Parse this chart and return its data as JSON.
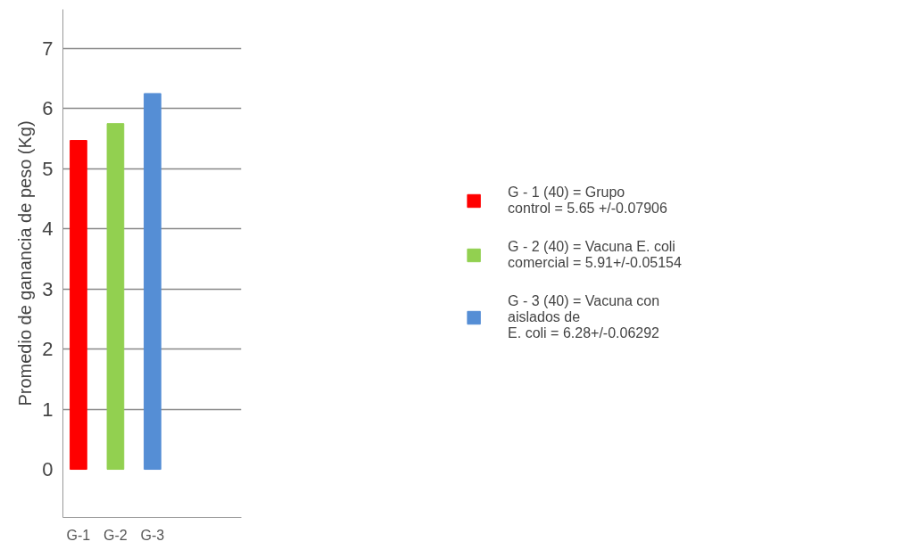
{
  "chart_data": {
    "type": "bar",
    "ylabel": "Promedio de ganancia de peso (Kg)",
    "categories": [
      "G-1",
      "G-2",
      "G-3"
    ],
    "series": [
      {
        "name": "G - 1 (40) = Grupo\ncontrol = 5.65 +/-0.07906",
        "color": "#ff0000",
        "values": [
          5.47,
          null,
          null
        ]
      },
      {
        "name": "G - 2 (40) = Vacuna E. coli\ncomercial = 5.91+/-0.05154",
        "color": "#92d050",
        "values": [
          null,
          5.75,
          null
        ]
      },
      {
        "name": "G - 3 (40) = Vacuna con\naislados de\nE. coli = 6.28+/-0.06292",
        "color": "#558ed5",
        "values": [
          null,
          null,
          6.25
        ]
      }
    ],
    "ylim": [
      -0.8,
      7.65
    ],
    "yticks": [
      0,
      1,
      2,
      3,
      4,
      5,
      6,
      7
    ],
    "grid": "y",
    "legend": "right"
  }
}
